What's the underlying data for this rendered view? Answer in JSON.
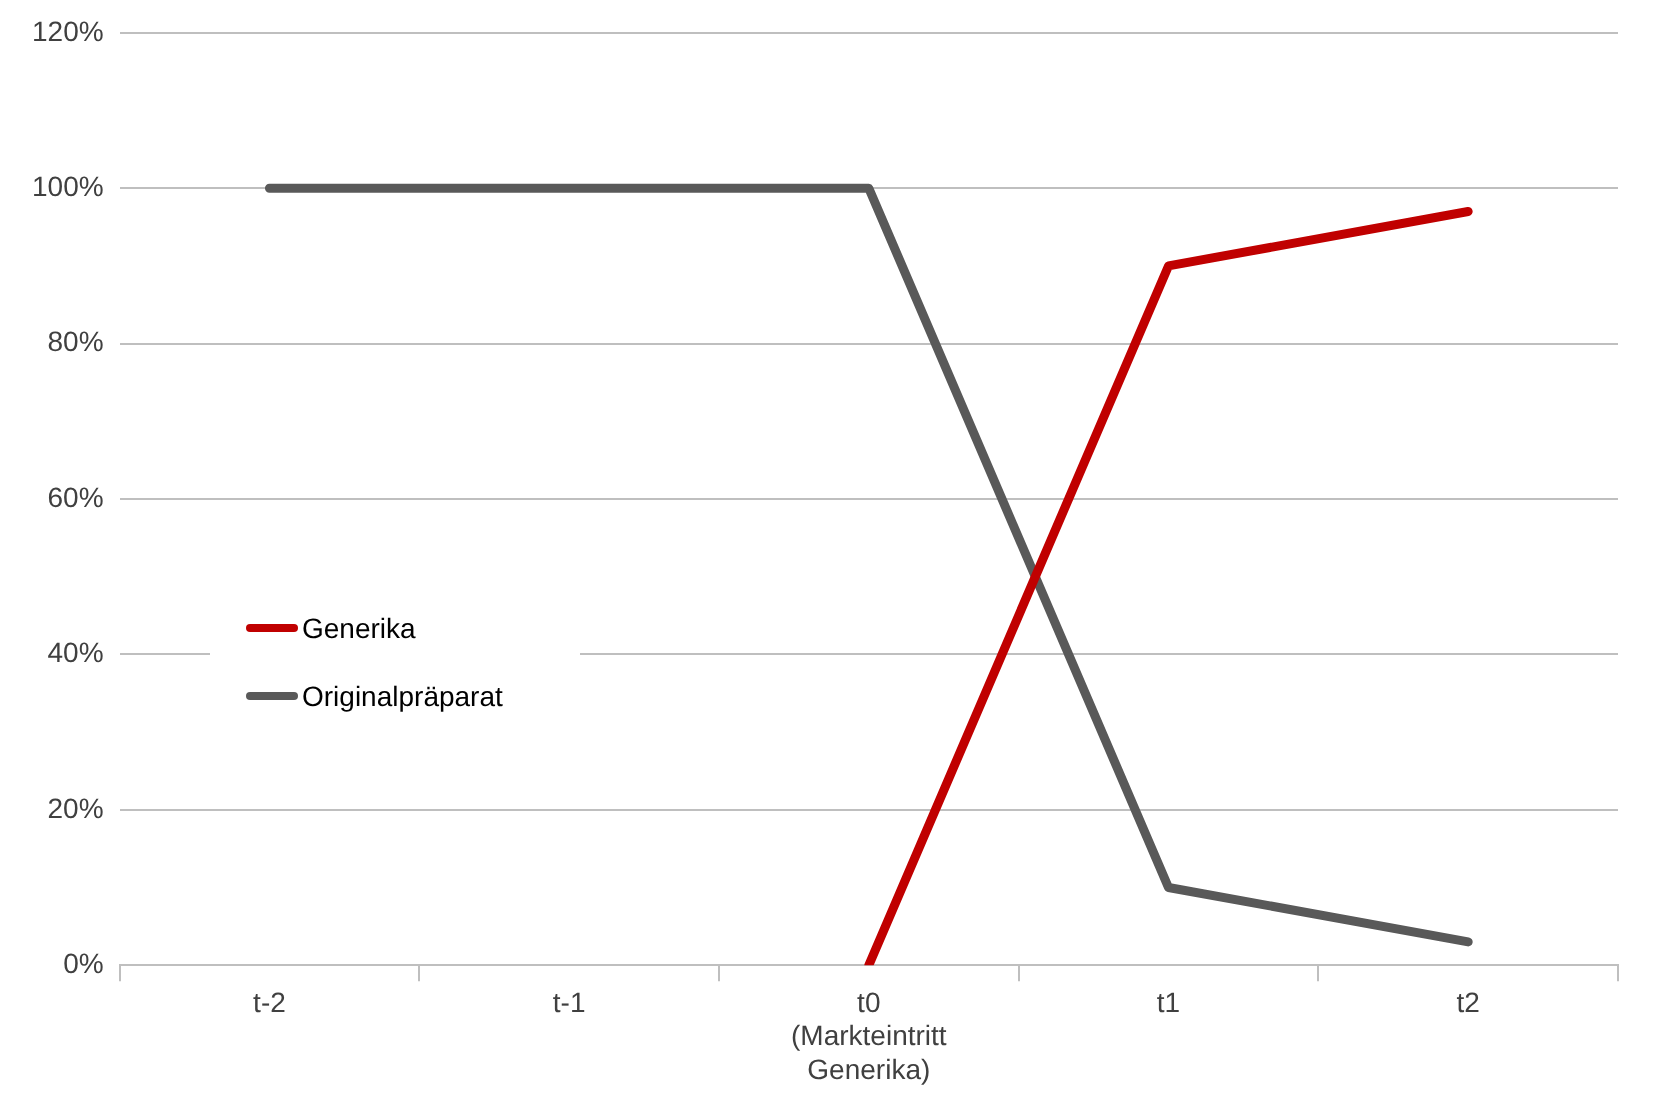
{
  "chart_data": {
    "type": "line",
    "categories": [
      "t-2",
      "t-1",
      "t0\n(Markteintritt\nGenerika)",
      "t1",
      "t2"
    ],
    "series": [
      {
        "name": "Generika",
        "color": "#c00000",
        "values": [
          null,
          null,
          0,
          90,
          97
        ]
      },
      {
        "name": "Originalpräparat",
        "color": "#595959",
        "values": [
          100,
          100,
          100,
          10,
          3
        ]
      }
    ],
    "ylim": [
      0,
      120
    ],
    "yticks": [
      {
        "value": 0,
        "label": "0%"
      },
      {
        "value": 20,
        "label": "20%"
      },
      {
        "value": 40,
        "label": "40%"
      },
      {
        "value": 60,
        "label": "60%"
      },
      {
        "value": 80,
        "label": "80%"
      },
      {
        "value": 100,
        "label": "100%"
      },
      {
        "value": 120,
        "label": "120%"
      }
    ],
    "grid": "y",
    "legend": "left",
    "marker": "none",
    "line_style": "solid"
  }
}
